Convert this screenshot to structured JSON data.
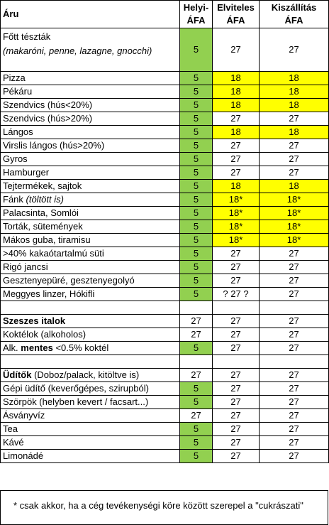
{
  "header": {
    "col1": "Áru",
    "col2_line1": "Helyi-",
    "col2_line2": "ÁFA",
    "col3_line1": "Elviteles",
    "col3_line2": "ÁFA",
    "col4_line1": "Kiszállítás",
    "col4_line2": "ÁFA"
  },
  "first_row": {
    "label_line1": "Főtt tészták",
    "label_line2": "(makaróni, penne, lazagne, gnocchi)",
    "helyi": "5",
    "elvitel": "27",
    "kiszallitas": "27"
  },
  "rows_food": [
    {
      "label": "Pizza",
      "helyi": "5",
      "elvitel": "18",
      "kiszallitas": "18",
      "hl": true
    },
    {
      "label": "Pékáru",
      "helyi": "5",
      "elvitel": "18",
      "kiszallitas": "18",
      "hl": true
    },
    {
      "label": "Szendvics (hús<20%)",
      "helyi": "5",
      "elvitel": "18",
      "kiszallitas": "18",
      "hl": true
    },
    {
      "label": "Szendvics (hús>20%)",
      "helyi": "5",
      "elvitel": "27",
      "kiszallitas": "27",
      "hl": false
    },
    {
      "label": "Lángos",
      "helyi": "5",
      "elvitel": "18",
      "kiszallitas": "18",
      "hl": true
    },
    {
      "label": "Virslis lángos (hús>20%)",
      "helyi": "5",
      "elvitel": "27",
      "kiszallitas": "27",
      "hl": false
    },
    {
      "label": "Gyros",
      "helyi": "5",
      "elvitel": "27",
      "kiszallitas": "27",
      "hl": false
    },
    {
      "label": "Hamburger",
      "helyi": "5",
      "elvitel": "27",
      "kiszallitas": "27",
      "hl": false
    },
    {
      "label": "Tejtermékek, sajtok",
      "helyi": "5",
      "elvitel": "18",
      "kiszallitas": "18",
      "hl": true
    },
    {
      "label": "Fánk ",
      "label_italic": "(töltött is)",
      "helyi": "5",
      "elvitel": "18*",
      "kiszallitas": "18*",
      "hl": true
    },
    {
      "label": "Palacsinta, Somlói",
      "helyi": "5",
      "elvitel": "18*",
      "kiszallitas": "18*",
      "hl": true
    },
    {
      "label": "Torták, sütemények",
      "helyi": "5",
      "elvitel": "18*",
      "kiszallitas": "18*",
      "hl": true
    },
    {
      "label": "Mákos guba, tiramisu",
      "helyi": "5",
      "elvitel": "18*",
      "kiszallitas": "18*",
      "hl": true
    },
    {
      "label": ">40% kakaótartalmú süti",
      "helyi": "5",
      "elvitel": "27",
      "kiszallitas": "27",
      "hl": false
    },
    {
      "label": "Rigó jancsi",
      "helyi": "5",
      "elvitel": "27",
      "kiszallitas": "27",
      "hl": false
    },
    {
      "label": "Gesztenyepüré, gesztenyegolyó",
      "helyi": "5",
      "elvitel": "27",
      "kiszallitas": "27",
      "hl": false
    },
    {
      "label": "Meggyes linzer, Hókifli",
      "helyi": "5",
      "elvitel": "? 27 ?",
      "kiszallitas": "27",
      "hl": false
    }
  ],
  "alcohol": {
    "header": {
      "label": "Szeszes italok",
      "helyi": "27",
      "elvitel": "27",
      "kiszallitas": "27"
    },
    "row1": {
      "label": "Koktélok (alkoholos)",
      "helyi": "27",
      "elvitel": "27",
      "kiszallitas": "27"
    },
    "row2": {
      "label_pre": "Alk. ",
      "label_bold": "mentes",
      "label_post": " <0.5% koktél",
      "helyi": "5",
      "elvitel": "27",
      "kiszallitas": "27"
    }
  },
  "drinks": {
    "header": {
      "label_bold": "Üdítők",
      "label_rest": " (Doboz/palack, kitöltve is)",
      "helyi": "27",
      "elvitel": "27",
      "kiszallitas": "27"
    },
    "rows": [
      {
        "label": "Gépi üdítő (keverőgépes, szirupból)",
        "helyi": "5",
        "elvitel": "27",
        "kiszallitas": "27",
        "green": true
      },
      {
        "label": "Szörpök (helyben kevert / facsart...)",
        "helyi": "5",
        "elvitel": "27",
        "kiszallitas": "27",
        "green": true
      },
      {
        "label": "Ásványvíz",
        "helyi": "27",
        "elvitel": "27",
        "kiszallitas": "27",
        "green": false
      },
      {
        "label": "Tea",
        "helyi": "5",
        "elvitel": "27",
        "kiszallitas": "27",
        "green": true
      },
      {
        "label": "Kávé",
        "helyi": "5",
        "elvitel": "27",
        "kiszallitas": "27",
        "green": true
      },
      {
        "label": "Limonádé",
        "helyi": "5",
        "elvitel": "27",
        "kiszallitas": "27",
        "green": true
      }
    ]
  },
  "footnote": "* csak akkor, ha a cég tevékenységi köre között szerepel a \"cukrászati\"",
  "colors": {
    "green": "#92d050",
    "yellow": "#ffff00"
  }
}
